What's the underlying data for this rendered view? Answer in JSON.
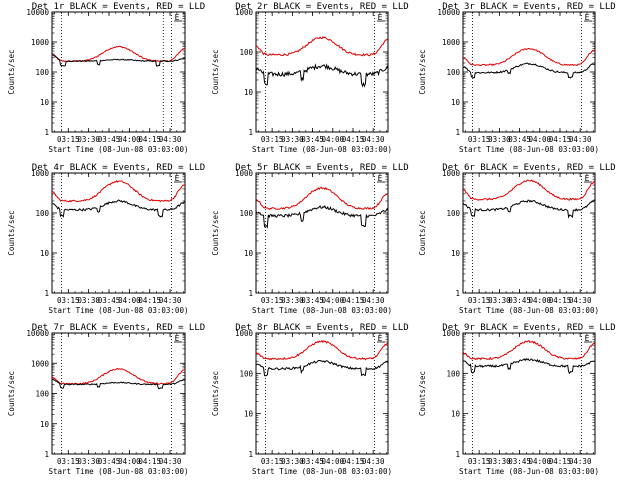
{
  "page": {
    "background": "#ffffff",
    "colors": {
      "events": "#000000",
      "lld": "#e00000",
      "axis": "#000000"
    }
  },
  "chart_data": [
    {
      "type": "line",
      "title": "Det 1r BLACK = Events, RED = LLD",
      "xlabel": "Start Time (08-Jun-08 03:03:00)",
      "ylabel": "Counts/sec",
      "yscale": "log",
      "ylim": [
        1,
        10000
      ],
      "yticks": [
        "1",
        "10",
        "100",
        "1000",
        "10000"
      ],
      "xticks": [
        "03:15",
        "03:30",
        "03:45",
        "04:00",
        "04:15",
        "04:30"
      ],
      "xlim": [
        "03:03",
        "04:41"
      ],
      "markers": [
        "03:10",
        "04:25",
        "04:31"
      ],
      "legend_mark": "E̲",
      "grid": false,
      "series": [
        {
          "name": "LLD",
          "color": "#e00000",
          "base": 230,
          "peak": 700,
          "edge_left": 380,
          "edge_right": 600,
          "noise": 0.05
        },
        {
          "name": "Events",
          "color": "#000000",
          "base": 230,
          "peak": 260,
          "edge_left": 380,
          "edge_right": 280,
          "noise": 0.04,
          "dips": [
            [
              0.06,
              0.1,
              0.7
            ],
            [
              0.34,
              0.36,
              0.75
            ],
            [
              0.78,
              0.81,
              0.7
            ]
          ]
        }
      ]
    },
    {
      "type": "line",
      "title": "Det 2r BLACK = Events, RED = LLD",
      "xlabel": "Start Time (08-Jun-08 03:03:00)",
      "ylabel": "Counts/sec",
      "yscale": "log",
      "ylim": [
        1,
        1000
      ],
      "yticks": [
        "1",
        "10",
        "100",
        "1000"
      ],
      "xticks": [
        "03:15",
        "03:30",
        "03:45",
        "04:00",
        "04:15",
        "04:30"
      ],
      "xlim": [
        "03:03",
        "04:41"
      ],
      "markers": [
        "03:10",
        "04:31"
      ],
      "legend_mark": "E̲",
      "grid": false,
      "series": [
        {
          "name": "LLD",
          "color": "#e00000",
          "base": 85,
          "peak": 230,
          "edge_left": 140,
          "edge_right": 200,
          "noise": 0.06
        },
        {
          "name": "Events",
          "color": "#000000",
          "base": 28,
          "peak": 45,
          "edge_left": 40,
          "edge_right": 40,
          "noise": 0.12,
          "dips": [
            [
              0.06,
              0.09,
              0.55
            ],
            [
              0.34,
              0.36,
              0.65
            ],
            [
              0.8,
              0.83,
              0.55
            ]
          ]
        }
      ]
    },
    {
      "type": "line",
      "title": "Det 3r BLACK = Events, RED = LLD",
      "xlabel": "Start Time (08-Jun-08 03:03:00)",
      "ylabel": "Counts/sec",
      "yscale": "log",
      "ylim": [
        1,
        10000
      ],
      "yticks": [
        "1",
        "10",
        "100",
        "1000",
        "10000"
      ],
      "xticks": [
        "03:15",
        "03:30",
        "03:45",
        "04:00",
        "04:15",
        "04:30"
      ],
      "xlim": [
        "03:03",
        "04:41"
      ],
      "markers": [
        "03:10",
        "04:31"
      ],
      "legend_mark": "E̲",
      "grid": false,
      "series": [
        {
          "name": "LLD",
          "color": "#e00000",
          "base": 170,
          "peak": 600,
          "edge_left": 300,
          "edge_right": 550,
          "noise": 0.05
        },
        {
          "name": "Events",
          "color": "#000000",
          "base": 95,
          "peak": 190,
          "edge_left": 150,
          "edge_right": 190,
          "noise": 0.06,
          "dips": [
            [
              0.06,
              0.09,
              0.7
            ],
            [
              0.34,
              0.36,
              0.75
            ],
            [
              0.8,
              0.83,
              0.7
            ]
          ]
        }
      ]
    },
    {
      "type": "line",
      "title": "Det 4r BLACK = Events, RED = LLD",
      "xlabel": "Start Time (08-Jun-08 03:03:00)",
      "ylabel": "Counts/sec",
      "yscale": "log",
      "ylim": [
        1,
        1000
      ],
      "yticks": [
        "1",
        "10",
        "100",
        "1000"
      ],
      "xticks": [
        "03:15",
        "03:30",
        "03:45",
        "04:00",
        "04:15",
        "04:30"
      ],
      "xlim": [
        "03:03",
        "04:41"
      ],
      "markers": [
        "03:10",
        "04:31"
      ],
      "legend_mark": "E̲",
      "grid": false,
      "series": [
        {
          "name": "LLD",
          "color": "#e00000",
          "base": 200,
          "peak": 620,
          "edge_left": 330,
          "edge_right": 500,
          "noise": 0.05
        },
        {
          "name": "Events",
          "color": "#000000",
          "base": 120,
          "peak": 200,
          "edge_left": 170,
          "edge_right": 180,
          "noise": 0.06,
          "dips": [
            [
              0.06,
              0.09,
              0.7
            ],
            [
              0.34,
              0.36,
              0.75
            ],
            [
              0.8,
              0.83,
              0.7
            ]
          ]
        }
      ]
    },
    {
      "type": "line",
      "title": "Det 5r BLACK = Events, RED = LLD",
      "xlabel": "Start Time (08-Jun-08 03:03:00)",
      "ylabel": "Counts/sec",
      "yscale": "log",
      "ylim": [
        1,
        1000
      ],
      "yticks": [
        "1",
        "10",
        "100",
        "1000"
      ],
      "xticks": [
        "03:15",
        "03:30",
        "03:45",
        "04:00",
        "04:15",
        "04:30"
      ],
      "xlim": [
        "03:03",
        "04:41"
      ],
      "markers": [
        "03:10",
        "04:31"
      ],
      "legend_mark": "E̲",
      "grid": false,
      "series": [
        {
          "name": "LLD",
          "color": "#e00000",
          "base": 130,
          "peak": 420,
          "edge_left": 220,
          "edge_right": 300,
          "noise": 0.05
        },
        {
          "name": "Events",
          "color": "#000000",
          "base": 85,
          "peak": 140,
          "edge_left": 110,
          "edge_right": 120,
          "noise": 0.08,
          "dips": [
            [
              0.06,
              0.09,
              0.55
            ],
            [
              0.34,
              0.36,
              0.65
            ],
            [
              0.8,
              0.83,
              0.55
            ]
          ]
        }
      ]
    },
    {
      "type": "line",
      "title": "Det 6r BLACK = Events, RED = LLD",
      "xlabel": "Start Time (08-Jun-08 03:03:00)",
      "ylabel": "Counts/sec",
      "yscale": "log",
      "ylim": [
        1,
        1000
      ],
      "yticks": [
        "1",
        "10",
        "100",
        "1000"
      ],
      "xticks": [
        "03:15",
        "03:30",
        "03:45",
        "04:00",
        "04:15",
        "04:30"
      ],
      "xlim": [
        "03:03",
        "04:41"
      ],
      "markers": [
        "03:10",
        "04:31"
      ],
      "legend_mark": "E̲",
      "grid": false,
      "series": [
        {
          "name": "LLD",
          "color": "#e00000",
          "base": 220,
          "peak": 650,
          "edge_left": 380,
          "edge_right": 600,
          "noise": 0.05
        },
        {
          "name": "Events",
          "color": "#000000",
          "base": 120,
          "peak": 200,
          "edge_left": 170,
          "edge_right": 200,
          "noise": 0.06,
          "dips": [
            [
              0.06,
              0.09,
              0.7
            ],
            [
              0.34,
              0.36,
              0.75
            ],
            [
              0.8,
              0.83,
              0.7
            ]
          ]
        }
      ]
    },
    {
      "type": "line",
      "title": "Det 7r BLACK = Events, RED = LLD",
      "xlabel": "Start Time (08-Jun-08 03:03:00)",
      "ylabel": "Counts/sec",
      "yscale": "log",
      "ylim": [
        1,
        10000
      ],
      "yticks": [
        "1",
        "10",
        "100",
        "1000",
        "10000"
      ],
      "xticks": [
        "03:15",
        "03:30",
        "03:45",
        "04:00",
        "04:15",
        "04:30"
      ],
      "xlim": [
        "03:03",
        "04:41"
      ],
      "markers": [
        "03:10",
        "04:31"
      ],
      "legend_mark": "E̲",
      "grid": false,
      "series": [
        {
          "name": "LLD",
          "color": "#e00000",
          "base": 210,
          "peak": 650,
          "edge_left": 350,
          "edge_right": 600,
          "noise": 0.05
        },
        {
          "name": "Events",
          "color": "#000000",
          "base": 200,
          "peak": 230,
          "edge_left": 300,
          "edge_right": 280,
          "noise": 0.04,
          "dips": [
            [
              0.06,
              0.09,
              0.75
            ],
            [
              0.34,
              0.36,
              0.8
            ],
            [
              0.8,
              0.83,
              0.75
            ]
          ]
        }
      ]
    },
    {
      "type": "line",
      "title": "Det 8r BLACK = Events, RED = LLD",
      "xlabel": "Start Time (08-Jun-08 03:03:00)",
      "ylabel": "Counts/sec",
      "yscale": "log",
      "ylim": [
        1,
        1000
      ],
      "yticks": [
        "1",
        "10",
        "100",
        "1000"
      ],
      "xticks": [
        "03:15",
        "03:30",
        "03:45",
        "04:00",
        "04:15",
        "04:30"
      ],
      "xlim": [
        "03:03",
        "04:41"
      ],
      "markers": [
        "03:10",
        "04:31"
      ],
      "legend_mark": "E̲",
      "grid": false,
      "series": [
        {
          "name": "LLD",
          "color": "#e00000",
          "base": 230,
          "peak": 620,
          "edge_left": 320,
          "edge_right": 550,
          "noise": 0.05
        },
        {
          "name": "Events",
          "color": "#000000",
          "base": 130,
          "peak": 200,
          "edge_left": 170,
          "edge_right": 190,
          "noise": 0.06,
          "dips": [
            [
              0.06,
              0.09,
              0.7
            ],
            [
              0.34,
              0.36,
              0.75
            ],
            [
              0.8,
              0.83,
              0.7
            ]
          ]
        }
      ]
    },
    {
      "type": "line",
      "title": "Det 9r BLACK = Events, RED = LLD",
      "xlabel": "Start Time (08-Jun-08 03:03:00)",
      "ylabel": "Counts/sec",
      "yscale": "log",
      "ylim": [
        1,
        1000
      ],
      "yticks": [
        "1",
        "10",
        "100",
        "1000"
      ],
      "xticks": [
        "03:15",
        "03:30",
        "03:45",
        "04:00",
        "04:15",
        "04:30"
      ],
      "xlim": [
        "03:03",
        "04:41"
      ],
      "markers": [
        "03:10",
        "04:31"
      ],
      "legend_mark": "E̲",
      "grid": false,
      "series": [
        {
          "name": "LLD",
          "color": "#e00000",
          "base": 230,
          "peak": 620,
          "edge_left": 330,
          "edge_right": 550,
          "noise": 0.05
        },
        {
          "name": "Events",
          "color": "#000000",
          "base": 150,
          "peak": 220,
          "edge_left": 200,
          "edge_right": 200,
          "noise": 0.06,
          "dips": [
            [
              0.06,
              0.09,
              0.7
            ],
            [
              0.34,
              0.36,
              0.75
            ],
            [
              0.8,
              0.83,
              0.7
            ]
          ]
        }
      ]
    }
  ]
}
